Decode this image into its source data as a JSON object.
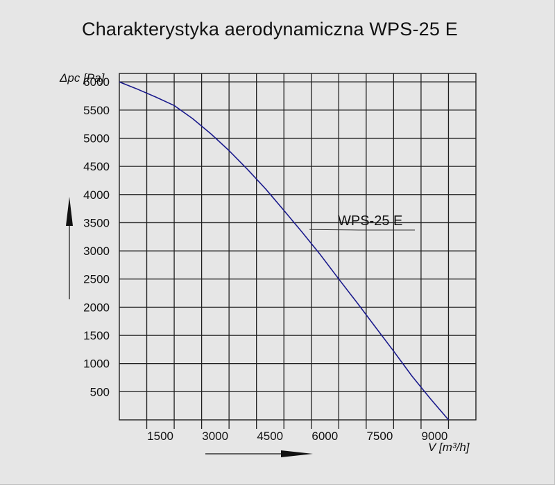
{
  "chart_data": {
    "type": "line",
    "title": "Charakterystyka aerodynamiczna  WPS-25 E",
    "ylabel": "Δpc [Pa]",
    "xlabel": "V [m³/h]",
    "xlim": [
      0,
      9750
    ],
    "ylim": [
      0,
      6150
    ],
    "x_tick_labels": [
      "1500",
      "3000",
      "4500",
      "6000",
      "7500",
      "9000"
    ],
    "y_tick_labels": [
      "500",
      "1000",
      "1500",
      "2000",
      "2500",
      "3000",
      "3500",
      "4000",
      "4500",
      "5000",
      "5500",
      "6000"
    ],
    "grid": true,
    "series": [
      {
        "name": "WPS-25 E",
        "color": "#1a1a8c",
        "x": [
          0,
          500,
          1000,
          1500,
          2000,
          2500,
          3000,
          3500,
          4000,
          4500,
          5000,
          5500,
          6000,
          6500,
          7000,
          7500,
          8000,
          8500,
          9000
        ],
        "y": [
          6000,
          5870,
          5730,
          5580,
          5350,
          5080,
          4780,
          4450,
          4100,
          3720,
          3330,
          2930,
          2500,
          2080,
          1650,
          1220,
          780,
          380,
          0
        ]
      }
    ]
  }
}
